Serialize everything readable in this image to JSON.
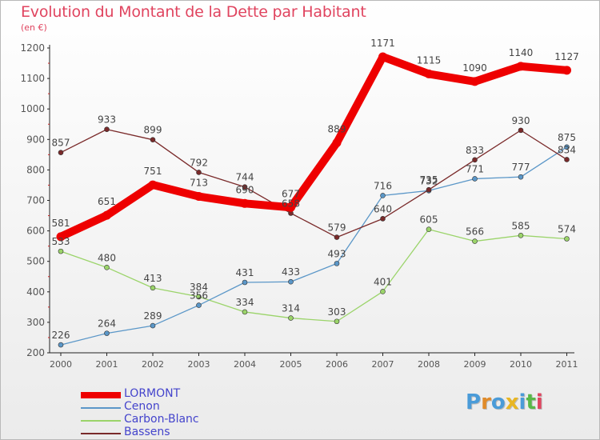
{
  "title": "Evolution du Montant de la Dette par Habitant",
  "subtitle": "(en €)",
  "logo": {
    "text": "Proxiti",
    "colors": [
      "#4a9bd8",
      "#e08b2a",
      "#4a9bd8",
      "#e8b623",
      "#4a9bd8",
      "#58b848",
      "#e0445f"
    ]
  },
  "chart_data": {
    "type": "line",
    "x": [
      "2000",
      "2001",
      "2002",
      "2003",
      "2004",
      "2005",
      "2006",
      "2007",
      "2008",
      "2009",
      "2010",
      "2011"
    ],
    "ylim": [
      200,
      1200
    ],
    "yticks": [
      200,
      300,
      400,
      500,
      600,
      700,
      800,
      900,
      1000,
      1100,
      1200
    ],
    "grid": false,
    "legend_position": "bottom-left",
    "series": [
      {
        "name": "LORMONT",
        "color": "#ee0000",
        "values": [
          581,
          651,
          751,
          713,
          690,
          677,
          889,
          1171,
          1115,
          1090,
          1140,
          1127
        ]
      },
      {
        "name": "Cenon",
        "color": "#5b97c8",
        "values": [
          226,
          264,
          289,
          356,
          431,
          433,
          493,
          716,
          732,
          771,
          777,
          875
        ]
      },
      {
        "name": "Carbon-Blanc",
        "color": "#9bd46a",
        "values": [
          533,
          480,
          413,
          384,
          334,
          314,
          303,
          401,
          605,
          566,
          585,
          574
        ]
      },
      {
        "name": "Bassens",
        "color": "#7a2a2a",
        "values": [
          857,
          933,
          899,
          792,
          744,
          658,
          579,
          640,
          735,
          833,
          930,
          834
        ]
      }
    ]
  }
}
